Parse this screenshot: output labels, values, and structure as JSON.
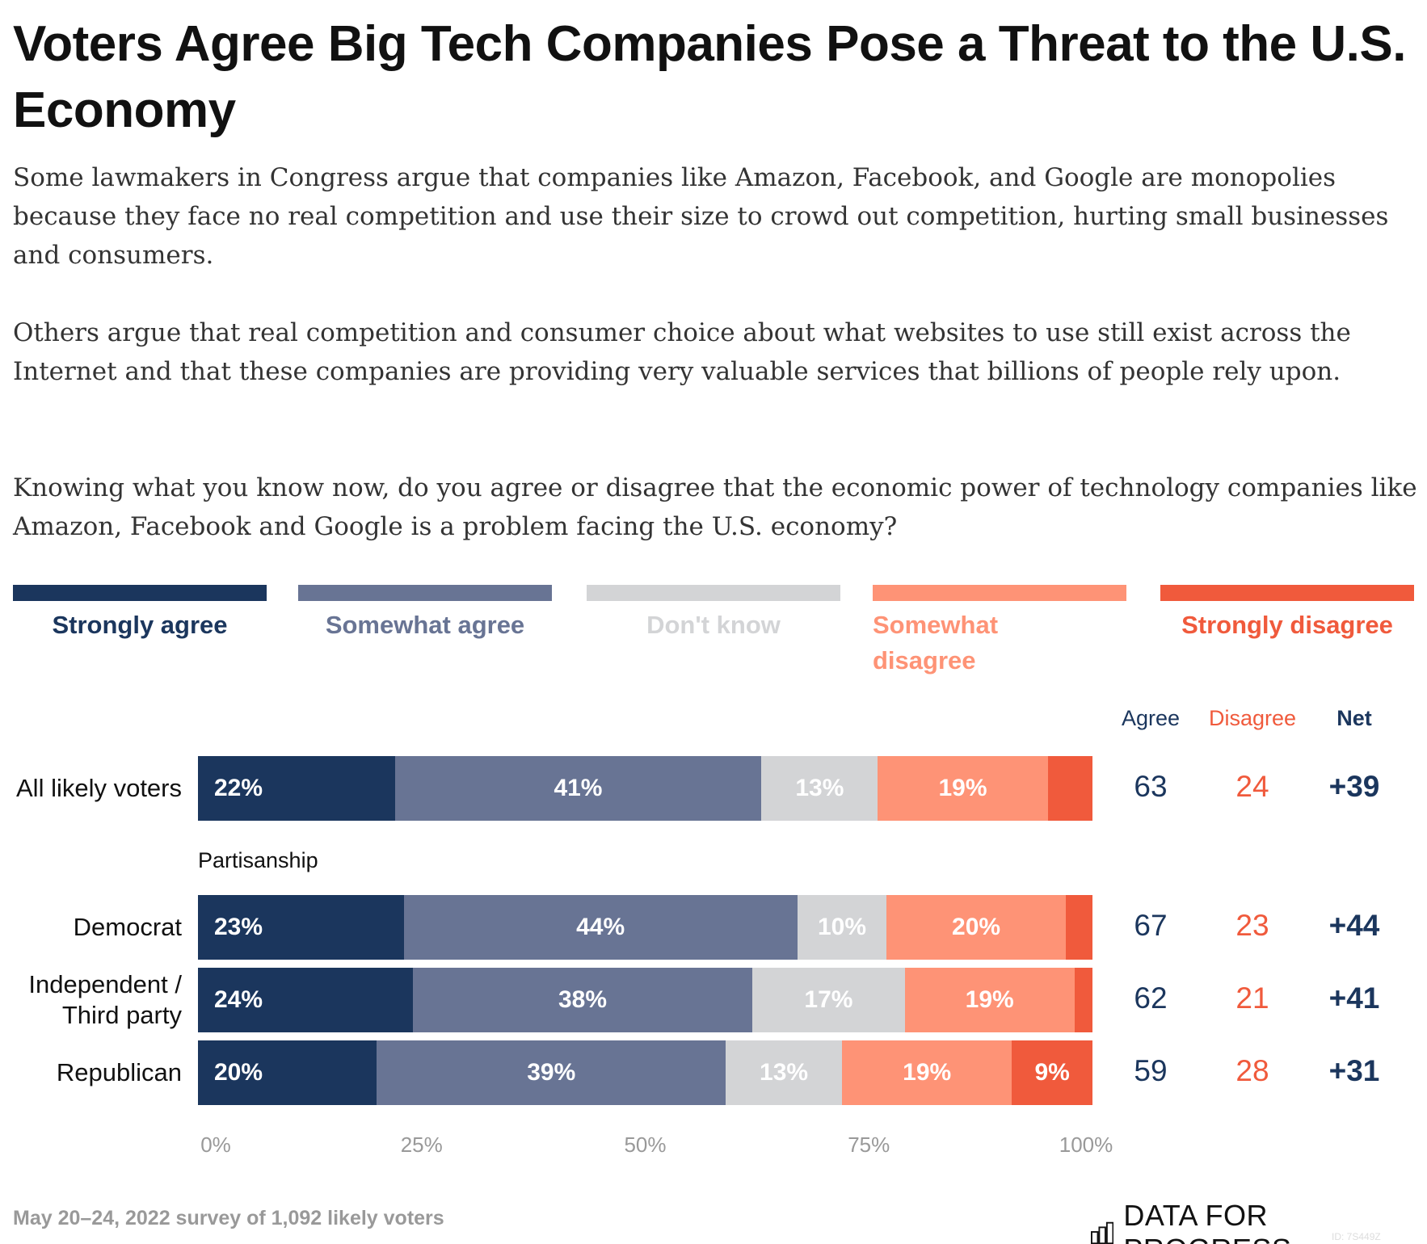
{
  "title": "Voters Agree Big Tech Companies Pose a Threat to the U.S. Economy",
  "paragraphs": [
    "Some lawmakers in Congress argue that companies like Amazon, Facebook, and Google are monopolies because they face no real competition and use their size to crowd out competition, hurting small businesses and consumers.",
    "Others argue that real competition and consumer choice about what websites to use still exist across the Internet and that these companies are providing very valuable services that billions of people rely upon.",
    "Knowing what you know now, do you agree or disagree that the economic power of technology companies like Amazon, Facebook and Google is a problem facing the U.S. economy?"
  ],
  "colors": {
    "strongly_agree": "#1b365d",
    "somewhat_agree": "#687494",
    "dont_know": "#d3d4d6",
    "somewhat_disagree": "#fe9376",
    "strongly_disagree": "#f05a3c"
  },
  "chart_data": {
    "type": "bar",
    "orientation": "horizontal-stacked",
    "legend": [
      "Strongly agree",
      "Somewhat agree",
      "Don't know",
      "Somewhat disagree",
      "Strongly disagree"
    ],
    "legend_placement": "top",
    "group_label": "Partisanship",
    "categories": [
      "All likely voters",
      "Democrat",
      "Independent / Third party",
      "Republican"
    ],
    "series": [
      {
        "name": "Strongly agree",
        "values": [
          22,
          23,
          24,
          20
        ]
      },
      {
        "name": "Somewhat agree",
        "values": [
          41,
          44,
          38,
          39
        ]
      },
      {
        "name": "Don't know",
        "values": [
          13,
          10,
          17,
          13
        ]
      },
      {
        "name": "Somewhat disagree",
        "values": [
          19,
          20,
          19,
          19
        ]
      },
      {
        "name": "Strongly disagree",
        "values": [
          5,
          3,
          2,
          9
        ]
      }
    ],
    "data_labels": [
      [
        "22%",
        "41%",
        "13%",
        "19%",
        ""
      ],
      [
        "23%",
        "44%",
        "10%",
        "20%",
        ""
      ],
      [
        "24%",
        "38%",
        "17%",
        "19%",
        ""
      ],
      [
        "20%",
        "39%",
        "13%",
        "19%",
        "9%"
      ]
    ],
    "summary_headers": [
      "Agree",
      "Disagree",
      "Net"
    ],
    "summary": [
      {
        "agree": "63",
        "disagree": "24",
        "net": "+39"
      },
      {
        "agree": "67",
        "disagree": "23",
        "net": "+44"
      },
      {
        "agree": "62",
        "disagree": "21",
        "net": "+41"
      },
      {
        "agree": "59",
        "disagree": "28",
        "net": "+31"
      }
    ],
    "xticks": [
      "0%",
      "25%",
      "50%",
      "75%",
      "100%"
    ],
    "xlim": [
      0,
      100
    ]
  },
  "footer": {
    "source": "May 20–24, 2022 survey of 1,092 likely voters",
    "logo_text": "DATA FOR PROGRESS",
    "id": "ID: 7S449Z"
  }
}
